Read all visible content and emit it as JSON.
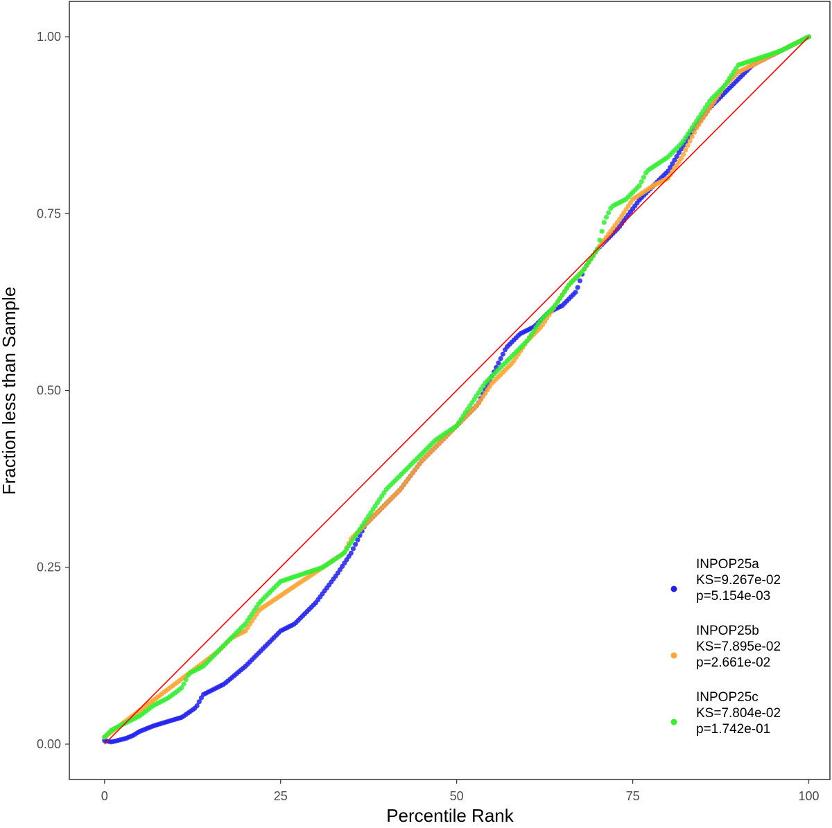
{
  "chart_data": {
    "type": "scatter",
    "title": "",
    "xlabel": "Percentile Rank",
    "ylabel": "Fraction less than Sample",
    "xlim": [
      -5,
      103
    ],
    "ylim": [
      -0.05,
      1.05
    ],
    "x_ticks": [
      0,
      25,
      50,
      75,
      100
    ],
    "x_tick_labels": [
      "0",
      "25",
      "50",
      "75",
      "100"
    ],
    "y_ticks": [
      0,
      0.25,
      0.5,
      0.75,
      1.0
    ],
    "y_tick_labels": [
      "0.00",
      "0.25",
      "0.50",
      "0.75",
      "1.00"
    ],
    "grid": false,
    "legend_position": "bottom-right",
    "reference_line": {
      "x": [
        0,
        100
      ],
      "y": [
        0,
        1
      ],
      "color": "#ff0000"
    },
    "series": [
      {
        "name": "INPOP25a",
        "legend_lines": [
          "INPOP25a",
          " KS=9.267e-02",
          " p=5.154e-03"
        ],
        "color": "#2121ee",
        "knots": [
          [
            0,
            0.005
          ],
          [
            1,
            0.003
          ],
          [
            3,
            0.008
          ],
          [
            4,
            0.012
          ],
          [
            5,
            0.018
          ],
          [
            7,
            0.026
          ],
          [
            9,
            0.032
          ],
          [
            11,
            0.038
          ],
          [
            13,
            0.052
          ],
          [
            14,
            0.07
          ],
          [
            17,
            0.085
          ],
          [
            20,
            0.11
          ],
          [
            22,
            0.13
          ],
          [
            25,
            0.16
          ],
          [
            27,
            0.17
          ],
          [
            30,
            0.2
          ],
          [
            33,
            0.24
          ],
          [
            35,
            0.27
          ],
          [
            37,
            0.31
          ],
          [
            40,
            0.34
          ],
          [
            42,
            0.36
          ],
          [
            45,
            0.4
          ],
          [
            48,
            0.43
          ],
          [
            50,
            0.45
          ],
          [
            53,
            0.48
          ],
          [
            55,
            0.52
          ],
          [
            57,
            0.56
          ],
          [
            59,
            0.58
          ],
          [
            61,
            0.59
          ],
          [
            63,
            0.61
          ],
          [
            65,
            0.62
          ],
          [
            67,
            0.64
          ],
          [
            68,
            0.67
          ],
          [
            70,
            0.7
          ],
          [
            73,
            0.73
          ],
          [
            76,
            0.77
          ],
          [
            80,
            0.81
          ],
          [
            83,
            0.86
          ],
          [
            86,
            0.9
          ],
          [
            88,
            0.92
          ],
          [
            90,
            0.94
          ],
          [
            92,
            0.96
          ],
          [
            94,
            0.97
          ],
          [
            96,
            0.98
          ],
          [
            98,
            0.99
          ],
          [
            100,
            1.0
          ]
        ]
      },
      {
        "name": "INPOP25b",
        "legend_lines": [
          "INPOP25b",
          " KS=7.895e-02",
          " p=2.661e-02"
        ],
        "color": "#ffa533",
        "knots": [
          [
            0,
            0.01
          ],
          [
            2,
            0.025
          ],
          [
            4,
            0.04
          ],
          [
            6,
            0.055
          ],
          [
            8,
            0.07
          ],
          [
            10,
            0.085
          ],
          [
            12,
            0.1
          ],
          [
            14,
            0.115
          ],
          [
            16,
            0.13
          ],
          [
            18,
            0.15
          ],
          [
            20,
            0.16
          ],
          [
            22,
            0.19
          ],
          [
            25,
            0.21
          ],
          [
            28,
            0.23
          ],
          [
            31,
            0.25
          ],
          [
            34,
            0.27
          ],
          [
            35,
            0.29
          ],
          [
            37,
            0.31
          ],
          [
            39,
            0.33
          ],
          [
            42,
            0.36
          ],
          [
            45,
            0.4
          ],
          [
            48,
            0.43
          ],
          [
            50,
            0.45
          ],
          [
            53,
            0.48
          ],
          [
            55,
            0.51
          ],
          [
            58,
            0.54
          ],
          [
            60,
            0.57
          ],
          [
            62,
            0.59
          ],
          [
            64,
            0.62
          ],
          [
            66,
            0.65
          ],
          [
            68,
            0.67
          ],
          [
            70,
            0.7
          ],
          [
            73,
            0.74
          ],
          [
            75,
            0.77
          ],
          [
            78,
            0.79
          ],
          [
            80,
            0.8
          ],
          [
            82,
            0.83
          ],
          [
            84,
            0.87
          ],
          [
            86,
            0.9
          ],
          [
            88,
            0.93
          ],
          [
            90,
            0.95
          ],
          [
            92,
            0.96
          ],
          [
            94,
            0.97
          ],
          [
            96,
            0.98
          ],
          [
            98,
            0.99
          ],
          [
            100,
            1.0
          ]
        ]
      },
      {
        "name": "INPOP25c",
        "legend_lines": [
          "INPOP25c",
          " KS=7.804e-02",
          " p=1.742e-01"
        ],
        "color": "#33ee33",
        "knots": [
          [
            0,
            0.01
          ],
          [
            1,
            0.02
          ],
          [
            3,
            0.03
          ],
          [
            5,
            0.04
          ],
          [
            7,
            0.055
          ],
          [
            9,
            0.065
          ],
          [
            11,
            0.08
          ],
          [
            12,
            0.1
          ],
          [
            14,
            0.11
          ],
          [
            16,
            0.13
          ],
          [
            18,
            0.15
          ],
          [
            20,
            0.17
          ],
          [
            22,
            0.2
          ],
          [
            25,
            0.23
          ],
          [
            28,
            0.24
          ],
          [
            31,
            0.25
          ],
          [
            34,
            0.27
          ],
          [
            36,
            0.3
          ],
          [
            38,
            0.33
          ],
          [
            40,
            0.36
          ],
          [
            42,
            0.38
          ],
          [
            44,
            0.4
          ],
          [
            47,
            0.43
          ],
          [
            50,
            0.45
          ],
          [
            52,
            0.48
          ],
          [
            54,
            0.51
          ],
          [
            56,
            0.53
          ],
          [
            58,
            0.55
          ],
          [
            60,
            0.57
          ],
          [
            62,
            0.6
          ],
          [
            64,
            0.62
          ],
          [
            66,
            0.65
          ],
          [
            68,
            0.67
          ],
          [
            70,
            0.7
          ],
          [
            71,
            0.74
          ],
          [
            72,
            0.76
          ],
          [
            74,
            0.77
          ],
          [
            76,
            0.79
          ],
          [
            77,
            0.81
          ],
          [
            80,
            0.83
          ],
          [
            82,
            0.85
          ],
          [
            84,
            0.88
          ],
          [
            86,
            0.91
          ],
          [
            88,
            0.93
          ],
          [
            90,
            0.96
          ],
          [
            93,
            0.97
          ],
          [
            96,
            0.98
          ],
          [
            98,
            0.99
          ],
          [
            100,
            1.0
          ]
        ]
      }
    ]
  }
}
